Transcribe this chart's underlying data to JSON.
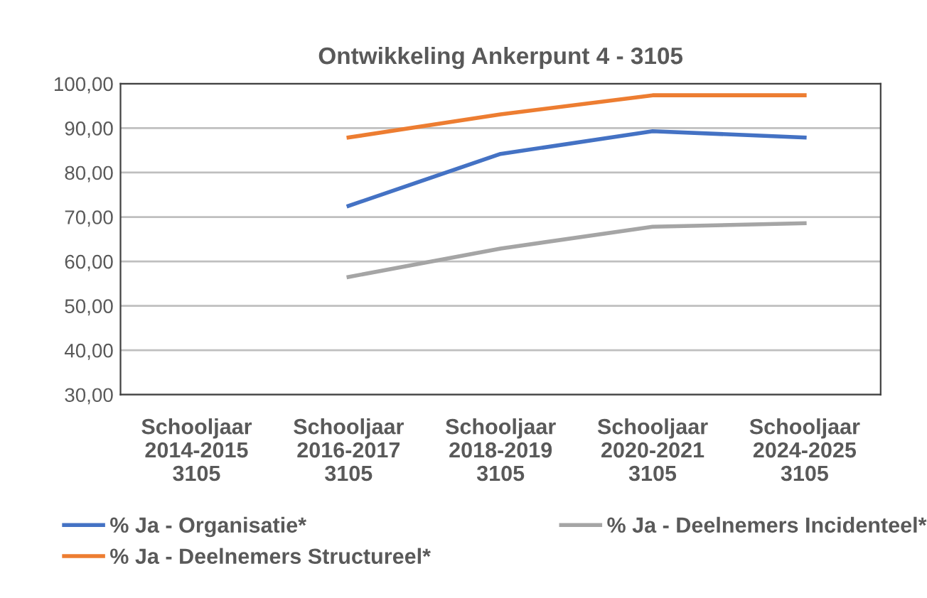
{
  "chart_data": {
    "type": "line",
    "title": "Ontwikkeling Ankerpunt 4 - 3105",
    "categories": [
      "Schooljaar\n2014-2015\n3105",
      "Schooljaar\n2016-2017\n3105",
      "Schooljaar\n2018-2019\n3105",
      "Schooljaar\n2020-2021\n3105",
      "Schooljaar\n2024-2025\n3105"
    ],
    "series": [
      {
        "name": "% Ja - Organisatie*",
        "color": "#4472c4",
        "values": [
          null,
          72.5,
          84.2,
          89.3,
          87.9
        ]
      },
      {
        "name": "% Ja - Deelnemers Structureel*",
        "color": "#ed7d31",
        "values": [
          null,
          87.9,
          93.1,
          97.4,
          97.4
        ]
      },
      {
        "name": "% Ja - Deelnemers Incidenteel*",
        "color": "#a5a5a5",
        "values": [
          null,
          56.5,
          62.9,
          67.8,
          68.6
        ]
      }
    ],
    "ylim": [
      30,
      100
    ],
    "yticks": [
      {
        "value": 30,
        "label": "30,00"
      },
      {
        "value": 40,
        "label": "40,00"
      },
      {
        "value": 50,
        "label": "50,00"
      },
      {
        "value": 60,
        "label": "60,00"
      },
      {
        "value": 70,
        "label": "70,00"
      },
      {
        "value": 80,
        "label": "80,00"
      },
      {
        "value": 90,
        "label": "90,00"
      },
      {
        "value": 100,
        "label": "100,00"
      }
    ],
    "grid": "y",
    "legend": "bottom",
    "marker": "none",
    "line_style": "solid"
  }
}
